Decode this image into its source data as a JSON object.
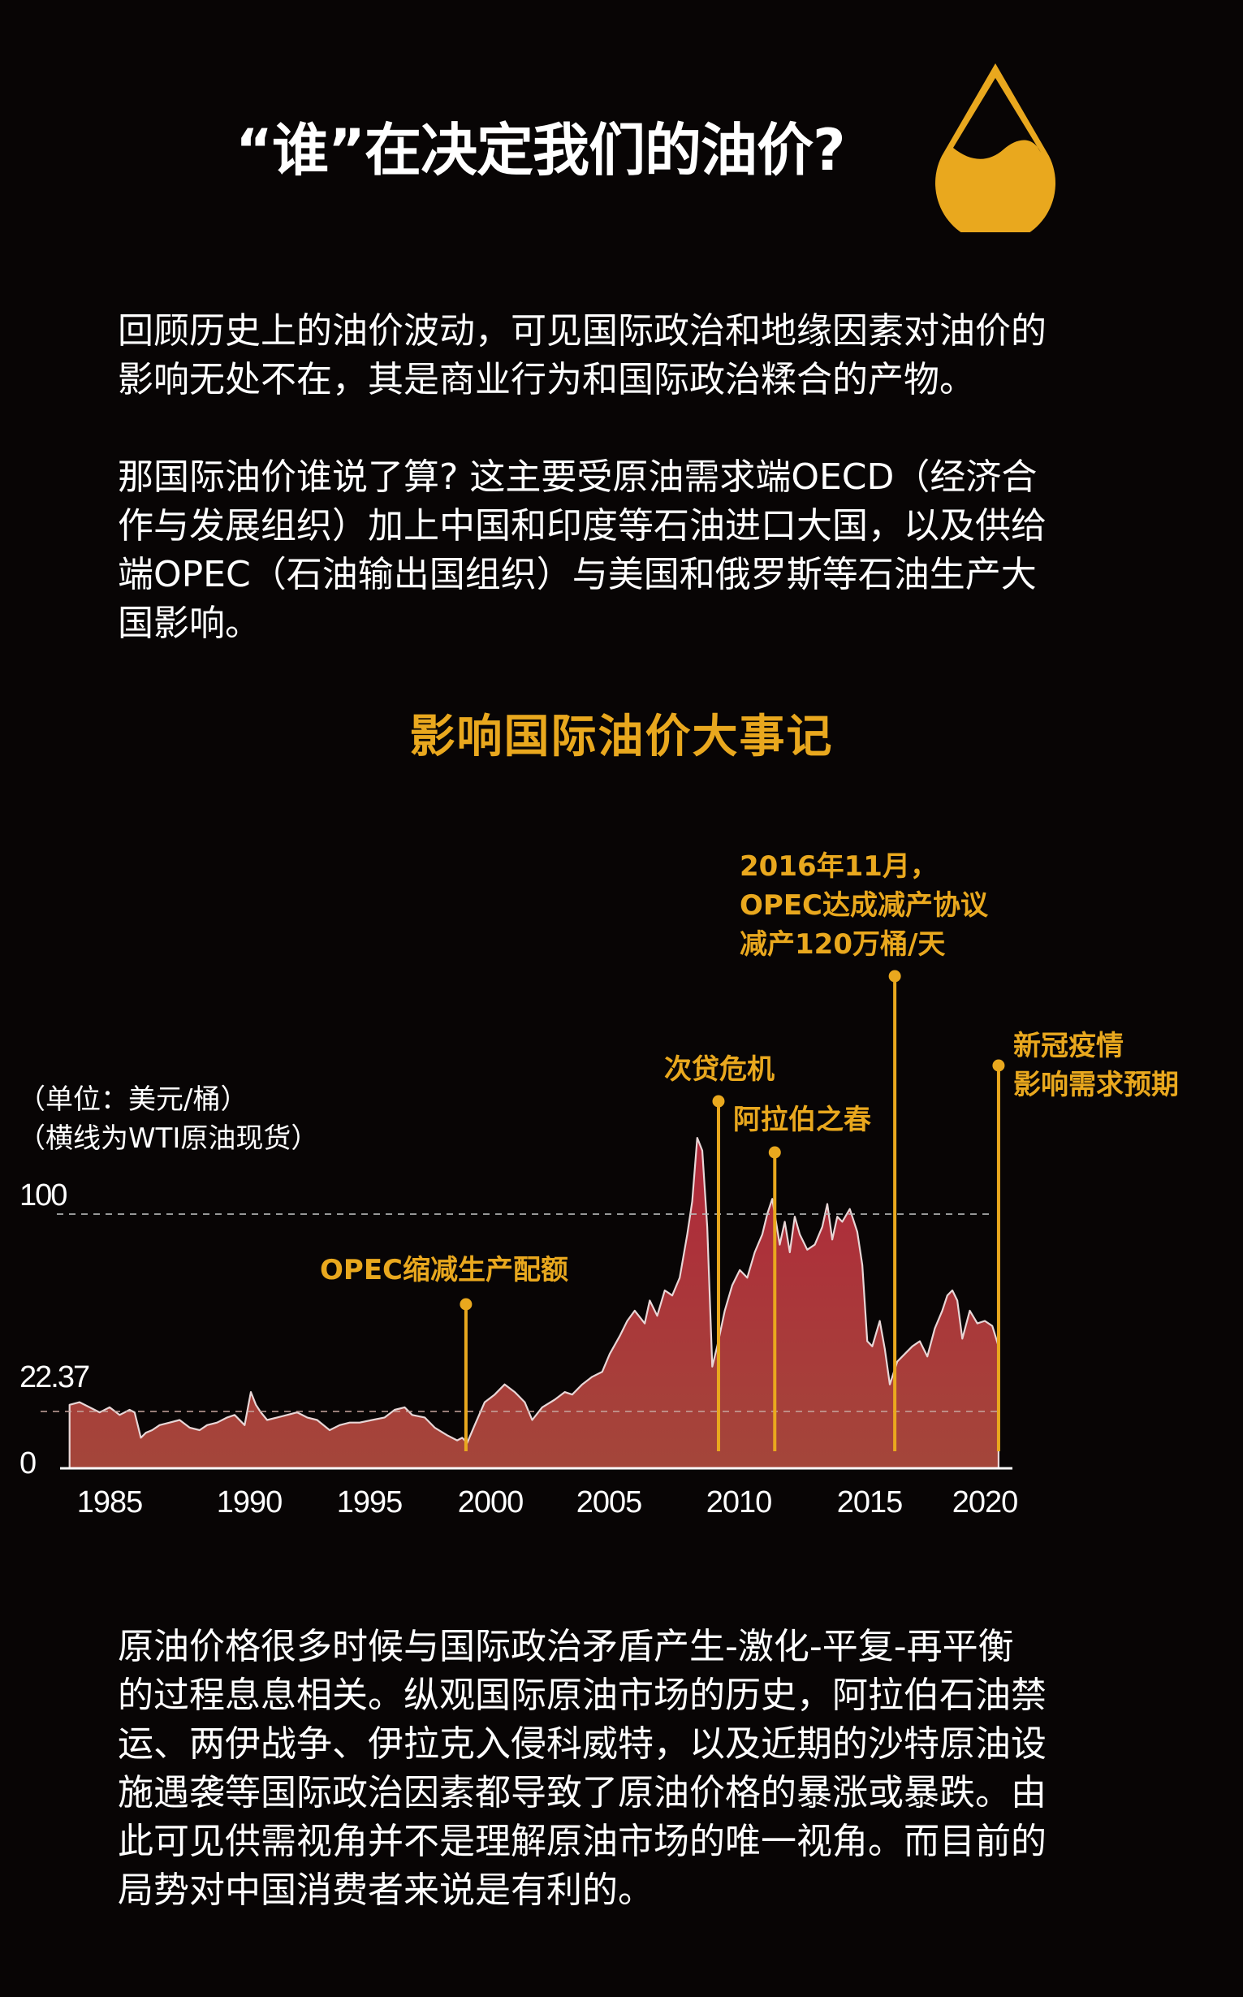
{
  "header": {
    "title": "“谁”在决定我们的油价?",
    "icon": "oil-drop-icon"
  },
  "intro": {
    "paragraph1": [
      "回顾历史上的油价波动，可见国际政治和地缘因素对油价的",
      "影响无处不在，其是商业行为和国际政治糅合的产物。"
    ],
    "paragraph2": [
      "那国际油价谁说了算? 这主要受原油需求端OECD（经济合",
      "作与发展组织）加上中国和印度等石油进口大国，以及供给",
      "端OPEC（石油输出国组织）与美国和俄罗斯等石油生产大",
      "国影响。"
    ]
  },
  "chart_section": {
    "title": "影响国际油价大事记",
    "unit_label": "（单位：美元/桶）",
    "note_label": "（横线为WTI原油现货）"
  },
  "conclusion": {
    "lines": [
      "原油价格很多时候与国际政治矛盾产生-激化-平复-再平衡",
      "的过程息息相关。纵观国际原油市场的历史，阿拉伯石油禁",
      "运、两伊战争、伊拉克入侵科威特，以及近期的沙特原油设",
      "施遇袭等国际政治因素都导致了原油价格的暴涨或暴跌。由",
      "此可见供需视角并不是理解原油市场的唯一视角。而目前的",
      "局势对中国消费者来说是有利的。"
    ]
  },
  "colors": {
    "background": "#080505",
    "accent": "#E9A81E",
    "area_top": "#B0283A",
    "area_bottom": "#A4463A",
    "line": "#E8D6D6",
    "text": "#FFFFFF"
  },
  "chart_data": {
    "type": "area",
    "title": "影响国际油价大事记",
    "xlabel": "",
    "ylabel": "美元/桶",
    "notes": [
      "（单位：美元/桶）",
      "（横线为WTI原油现货）"
    ],
    "xlim": [
      1983.4,
      2020.55
    ],
    "ylim": [
      0,
      140
    ],
    "y_ticks": [
      {
        "value": 0,
        "label": "0"
      },
      {
        "value": 22.37,
        "label": "22.37"
      },
      {
        "value": 100,
        "label": "100"
      }
    ],
    "reference_lines": [
      {
        "value": 100,
        "style": "dashed"
      },
      {
        "value": 22.37,
        "style": "dashed"
      }
    ],
    "x_ticks": [
      "1985",
      "1990",
      "1995",
      "2000",
      "2005",
      "2010",
      "2015",
      "2020"
    ],
    "grid": false,
    "legend": null,
    "series": [
      {
        "name": "WTI原油现货",
        "x": [
          1983.4,
          1983.8,
          1984.2,
          1984.6,
          1985.0,
          1985.4,
          1985.8,
          1986.0,
          1986.25,
          1986.45,
          1986.7,
          1987.0,
          1987.4,
          1987.8,
          1988.2,
          1988.6,
          1988.9,
          1989.3,
          1989.7,
          1990.0,
          1990.4,
          1990.65,
          1990.85,
          1991.05,
          1991.3,
          1991.7,
          1992.1,
          1992.5,
          1992.9,
          1993.3,
          1993.8,
          1994.2,
          1994.6,
          1995.0,
          1995.5,
          1996.0,
          1996.4,
          1996.8,
          1997.1,
          1997.6,
          1998.0,
          1998.5,
          1998.9,
          1999.1,
          1999.3,
          1999.6,
          2000.0,
          2000.4,
          2000.8,
          2001.2,
          2001.6,
          2001.9,
          2002.3,
          2002.8,
          2003.2,
          2003.5,
          2003.9,
          2004.3,
          2004.7,
          2005.0,
          2005.4,
          2005.7,
          2006.0,
          2006.4,
          2006.6,
          2006.9,
          2007.2,
          2007.5,
          2007.8,
          2008.1,
          2008.3,
          2008.5,
          2008.7,
          2008.9,
          2009.1,
          2009.3,
          2009.6,
          2009.9,
          2010.2,
          2010.5,
          2010.8,
          2011.1,
          2011.3,
          2011.5,
          2011.8,
          2012.0,
          2012.2,
          2012.4,
          2012.6,
          2012.9,
          2013.2,
          2013.5,
          2013.7,
          2013.9,
          2014.1,
          2014.3,
          2014.6,
          2014.9,
          2015.1,
          2015.3,
          2015.5,
          2015.8,
          2016.0,
          2016.2,
          2016.5,
          2016.8,
          2017.1,
          2017.4,
          2017.7,
          2018.0,
          2018.3,
          2018.5,
          2018.7,
          2018.9,
          2019.1,
          2019.4,
          2019.7,
          2020.0,
          2020.3,
          2020.55
        ],
        "values": [
          25,
          26,
          24,
          22,
          24,
          21,
          23,
          22,
          12,
          14,
          15,
          17,
          18,
          19,
          16,
          15,
          17,
          18,
          20,
          21,
          17,
          30,
          25,
          22,
          19,
          20,
          21,
          22,
          20,
          19,
          15,
          17,
          18,
          18,
          19,
          20,
          23,
          24,
          21,
          20,
          16,
          13,
          11,
          12,
          10,
          17,
          26,
          29,
          33,
          30,
          26,
          19,
          24,
          27,
          30,
          29,
          33,
          36,
          38,
          45,
          52,
          58,
          62,
          57,
          66,
          60,
          70,
          68,
          75,
          92,
          105,
          130,
          125,
          95,
          40,
          48,
          62,
          72,
          78,
          75,
          85,
          92,
          100,
          106,
          88,
          97,
          85,
          99,
          92,
          86,
          88,
          95,
          104,
          90,
          99,
          97,
          102,
          93,
          80,
          50,
          48,
          58,
          47,
          33,
          42,
          45,
          48,
          50,
          44,
          55,
          62,
          68,
          70,
          66,
          51,
          62,
          57,
          58,
          56,
          48
        ]
      }
    ],
    "annotations": [
      {
        "x": 1999.25,
        "label": "OPEC缩减生产配额"
      },
      {
        "x": 2009.35,
        "label": "次贷危机"
      },
      {
        "x": 2011.6,
        "label": "阿拉伯之春"
      },
      {
        "x": 2016.4,
        "label": "2016年11月，OPEC达成减产协议减产120万桶/天"
      },
      {
        "x": 2020.55,
        "label": "新冠疫情影响需求预期"
      }
    ]
  },
  "events": {
    "opec_quota": {
      "label": "OPEC缩减生产配额"
    },
    "subprime": {
      "label": "次贷危机"
    },
    "arab_spring": {
      "label": "阿拉伯之春"
    },
    "opec_2016": {
      "line1": "2016年11月，",
      "line2": "OPEC达成减产协议",
      "line3": "减产120万桶/天"
    },
    "covid": {
      "line1": "新冠疫情",
      "line2": "影响需求预期"
    }
  },
  "axis": {
    "y": {
      "top": "100",
      "mid": "22.37",
      "zero": "0"
    },
    "x": [
      "1985",
      "1990",
      "1995",
      "2000",
      "2005",
      "2010",
      "2015",
      "2020"
    ]
  }
}
